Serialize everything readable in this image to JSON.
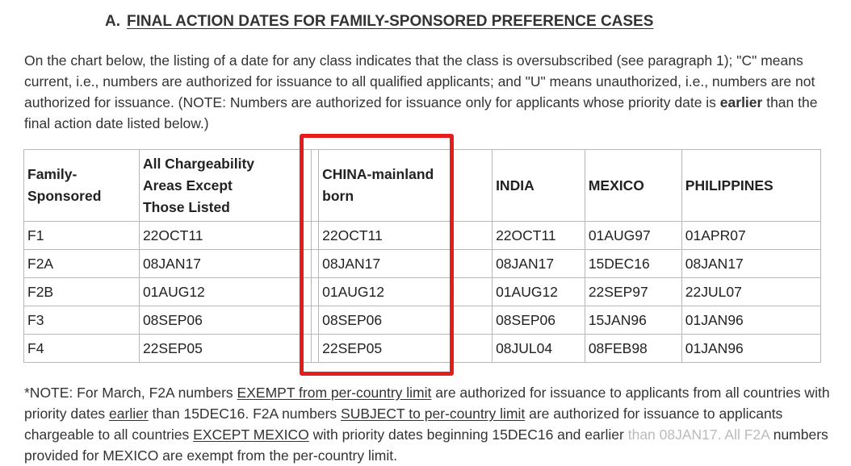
{
  "heading": {
    "letter": "A.",
    "title": "FINAL ACTION DATES FOR FAMILY-SPONSORED PREFERENCE CASES"
  },
  "intro": {
    "text": "On the chart below, the listing of a date for any class indicates that the class is oversubscribed (see paragraph 1); \"C\" means current, i.e., numbers are authorized for issuance to all qualified applicants; and \"U\" means unauthorized, i.e., numbers are not authorized for issuance. (NOTE: Numbers are authorized for issuance only for applicants whose priority date is ",
    "bold": "earlier",
    "tail": " than the final action date listed below.)"
  },
  "table": {
    "headers": {
      "family": "Family-Sponsored",
      "all": "All Chargeability Areas Except Those Listed",
      "china": "CHINA-mainland born",
      "india": "INDIA",
      "mexico": "MEXICO",
      "philippines": "PHILIPPINES"
    },
    "rows": [
      {
        "cat": "F1",
        "all": "22OCT11",
        "china": "22OCT11",
        "india": "22OCT11",
        "mexico": "01AUG97",
        "philippines": "01APR07"
      },
      {
        "cat": "F2A",
        "all": "08JAN17",
        "china": "08JAN17",
        "india": "08JAN17",
        "mexico": "15DEC16",
        "philippines": "08JAN17"
      },
      {
        "cat": "F2B",
        "all": "01AUG12",
        "china": "01AUG12",
        "india": "01AUG12",
        "mexico": "22SEP97",
        "philippines": "22JUL07"
      },
      {
        "cat": "F3",
        "all": "08SEP06",
        "china": "08SEP06",
        "india": "08SEP06",
        "mexico": "15JAN96",
        "philippines": "01JAN96"
      },
      {
        "cat": "F4",
        "all": "22SEP05",
        "china": "22SEP05",
        "india": "08JUL04",
        "mexico": "08FEB98",
        "philippines": "01JAN96"
      }
    ]
  },
  "highlight_color": "#e51c1c",
  "note": {
    "p1": "*NOTE: For March, F2A numbers ",
    "u1": "EXEMPT from per-country limit",
    "p2": " are authorized for issuance to applicants from all countries with priority dates ",
    "u2": "earlier",
    "p3": " than 15DEC16. F2A numbers ",
    "u3": "SUBJECT to per-country limit",
    "p4": " are authorized for issuance to applicants chargeable to all countries ",
    "u4": "EXCEPT MEXICO",
    "p5": " with priority dates beginning 15DEC16 and earlier ",
    "faded": "than 08JAN17. All F2A",
    "p6": " numbers provided for MEXICO are exempt from the per-country limit."
  }
}
